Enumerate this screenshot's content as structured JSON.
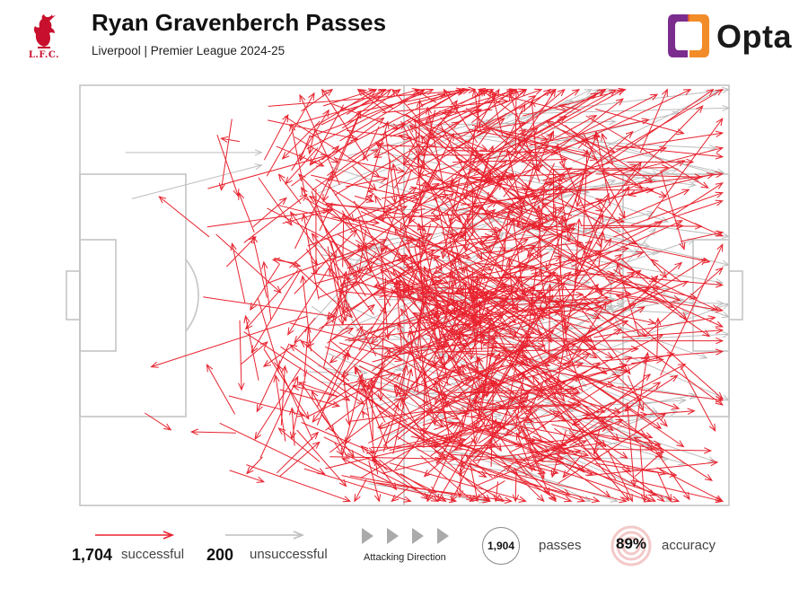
{
  "header": {
    "title": "Ryan Gravenberch Passes",
    "subtitle": "Liverpool | Premier League 2024-25",
    "club_logo_text": "LFC",
    "brand": "Opta"
  },
  "colors": {
    "successful": "#e8222e",
    "unsuccessful": "#bdbdbd",
    "pitch_lines": "#c4c4c4",
    "opta_orange": "#f28c28",
    "opta_purple": "#7b2d8e"
  },
  "legend": {
    "successful_count": "1,704",
    "successful_label": "successful",
    "unsuccessful_count": "200",
    "unsuccessful_label": "unsuccessful",
    "direction_label": "Attacking Direction",
    "passes_total": "1,904",
    "passes_label": "passes",
    "accuracy_value": "89%",
    "accuracy_label": "accuracy"
  },
  "chart_data": {
    "type": "pass-map",
    "title": "Ryan Gravenberch Passes",
    "subtitle": "Liverpool | Premier League 2024-25",
    "pitch": {
      "length": 100,
      "width": 100
    },
    "attacking_direction": "left-to-right",
    "totals": {
      "passes": 1904,
      "successful": 1704,
      "unsuccessful": 200,
      "accuracy_pct": 89
    },
    "legend": [
      "successful",
      "unsuccessful"
    ],
    "sample_passes": [
      {
        "x1": 10,
        "y1": 78,
        "x2": 14,
        "y2": 82,
        "outcome": "successful"
      },
      {
        "x1": 7,
        "y1": 16,
        "x2": 28,
        "y2": 16,
        "outcome": "unsuccessful"
      },
      {
        "x1": 8,
        "y1": 27,
        "x2": 28,
        "y2": 19,
        "outcome": "unsuccessful"
      },
      {
        "x1": 35,
        "y1": 55,
        "x2": 11,
        "y2": 67,
        "outcome": "successful"
      },
      {
        "x1": 50,
        "y1": 40,
        "x2": 81,
        "y2": 86,
        "outcome": "successful"
      },
      {
        "x1": 59,
        "y1": 50,
        "x2": 93,
        "y2": 86,
        "outcome": "successful"
      },
      {
        "x1": 60,
        "y1": 30,
        "x2": 97,
        "y2": 42,
        "outcome": "successful"
      },
      {
        "x1": 58,
        "y1": 60,
        "x2": 93,
        "y2": 51,
        "outcome": "unsuccessful"
      },
      {
        "x1": 72,
        "y1": 30,
        "x2": 100,
        "y2": 36,
        "outcome": "unsuccessful"
      },
      {
        "x1": 73,
        "y1": 40,
        "x2": 99,
        "y2": 47,
        "outcome": "unsuccessful"
      },
      {
        "x1": 60,
        "y1": 75,
        "x2": 100,
        "y2": 52,
        "outcome": "unsuccessful"
      },
      {
        "x1": 60,
        "y1": 12,
        "x2": 98,
        "y2": 15,
        "outcome": "unsuccessful"
      }
    ]
  }
}
